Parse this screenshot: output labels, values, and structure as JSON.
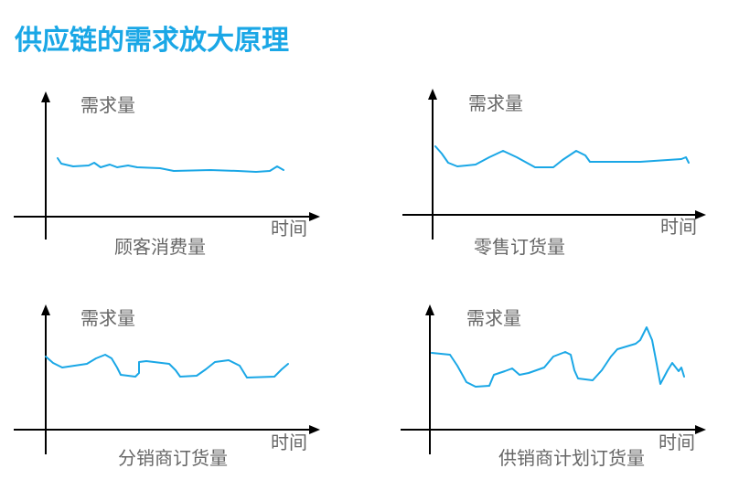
{
  "title": "供应链的需求放大原理",
  "panels": [
    {
      "y_label": "需求量",
      "x_label": "时间",
      "caption": "顾客消费量"
    },
    {
      "y_label": "需求量",
      "x_label": "时间",
      "caption": "零售订货量"
    },
    {
      "y_label": "需求量",
      "x_label": "时间",
      "caption": "分销商订货量"
    },
    {
      "y_label": "需求量",
      "x_label": "时间",
      "caption": "供销商计划订货量"
    }
  ]
}
